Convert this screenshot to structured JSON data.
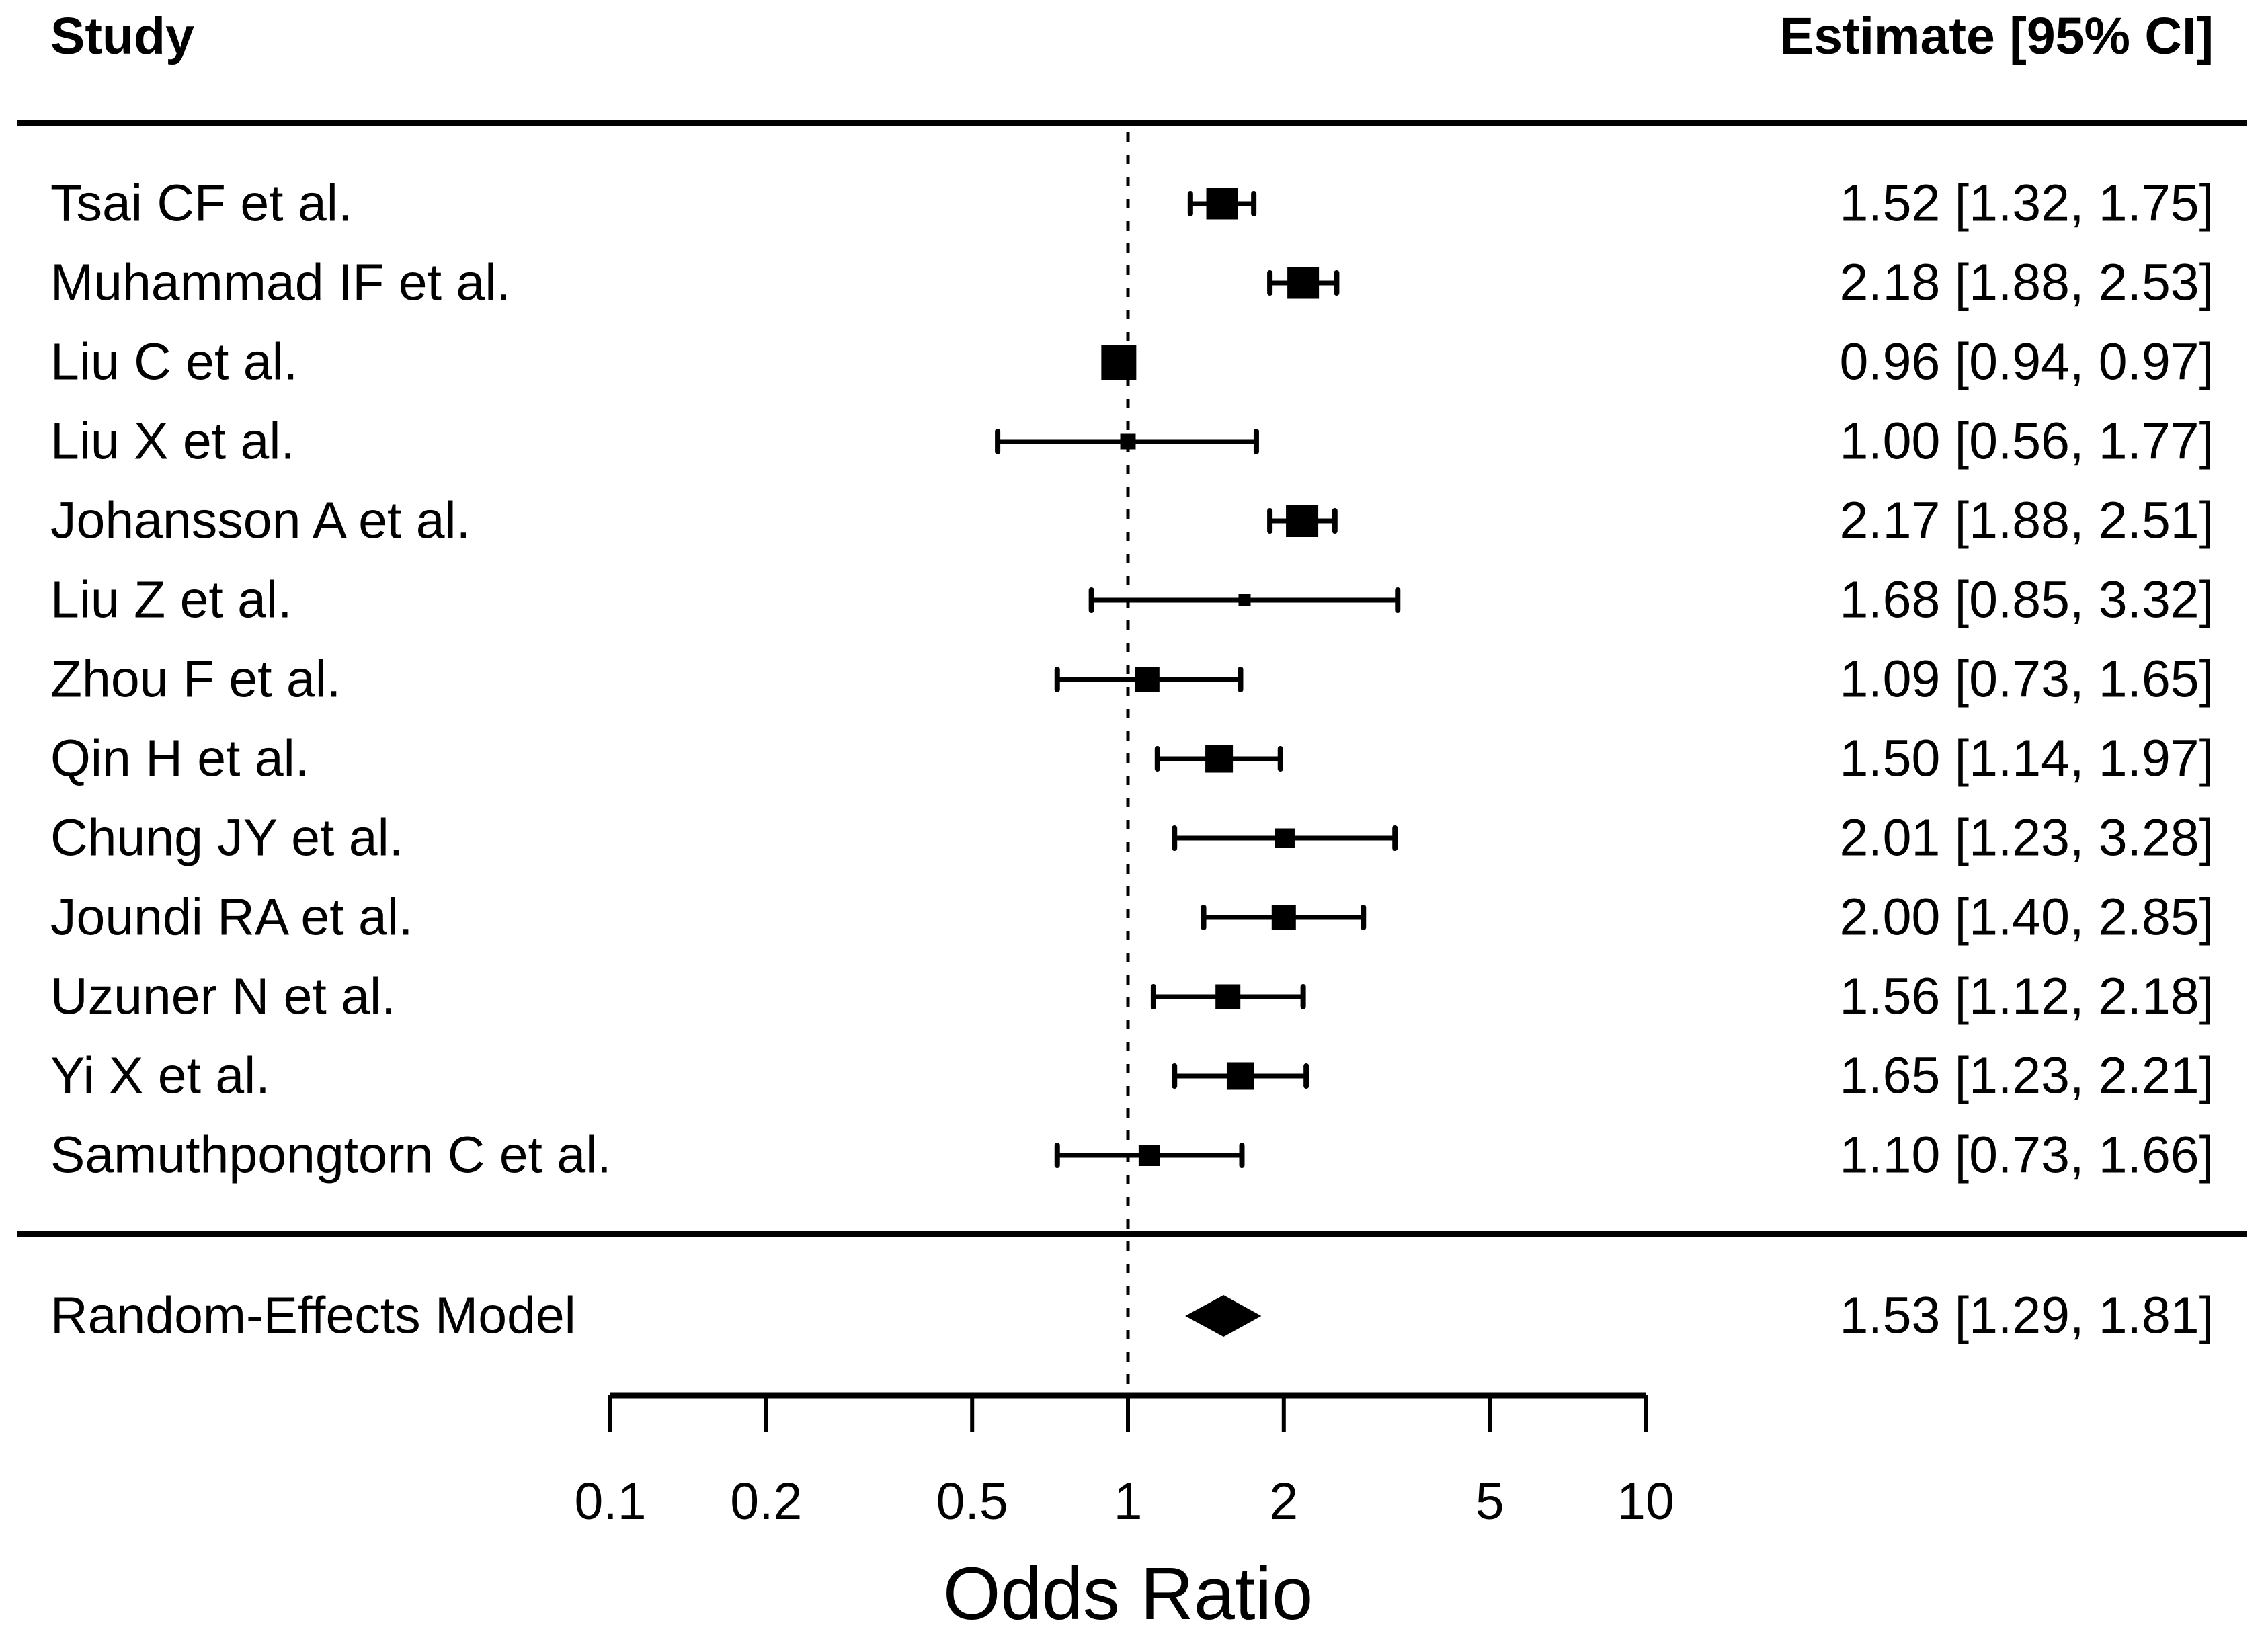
{
  "page": {
    "background": "#ffffff",
    "ink": "#000000"
  },
  "header": {
    "study": "Study",
    "estimate": "Estimate [95% CI]"
  },
  "chart_data": {
    "type": "forest",
    "x_scale": "log10",
    "xlabel": "Odds Ratio",
    "xlim": [
      0.1,
      10
    ],
    "ref_line": 1,
    "grid": "off",
    "x_ticks": [
      {
        "value": 0.1,
        "label": "0.1"
      },
      {
        "value": 0.2,
        "label": "0.2"
      },
      {
        "value": 0.5,
        "label": "0.5"
      },
      {
        "value": 1,
        "label": "1"
      },
      {
        "value": 2,
        "label": "2"
      },
      {
        "value": 5,
        "label": "5"
      },
      {
        "value": 10,
        "label": "10"
      }
    ],
    "studies": [
      {
        "label": "Tsai CF et al.",
        "estimate": 1.52,
        "ci_low": 1.32,
        "ci_high": 1.75,
        "estimate_label": "1.52 [1.32, 1.75]",
        "marker_size": 47
      },
      {
        "label": "Muhammad IF et al.",
        "estimate": 2.18,
        "ci_low": 1.88,
        "ci_high": 2.53,
        "estimate_label": "2.18 [1.88, 2.53]",
        "marker_size": 47
      },
      {
        "label": "Liu C et al.",
        "estimate": 0.96,
        "ci_low": 0.94,
        "ci_high": 0.97,
        "estimate_label": "0.96 [0.94, 0.97]",
        "marker_size": 52
      },
      {
        "label": "Liu X et al.",
        "estimate": 1.0,
        "ci_low": 0.56,
        "ci_high": 1.77,
        "estimate_label": "1.00 [0.56, 1.77]",
        "marker_size": 23
      },
      {
        "label": "Johansson A et al.",
        "estimate": 2.17,
        "ci_low": 1.88,
        "ci_high": 2.51,
        "estimate_label": "2.17 [1.88, 2.51]",
        "marker_size": 48
      },
      {
        "label": "Liu Z et al.",
        "estimate": 1.68,
        "ci_low": 0.85,
        "ci_high": 3.32,
        "estimate_label": "1.68 [0.85, 3.32]",
        "marker_size": 18
      },
      {
        "label": "Zhou F et al.",
        "estimate": 1.09,
        "ci_low": 0.73,
        "ci_high": 1.65,
        "estimate_label": "1.09 [0.73, 1.65]",
        "marker_size": 36
      },
      {
        "label": "Qin H et al.",
        "estimate": 1.5,
        "ci_low": 1.14,
        "ci_high": 1.97,
        "estimate_label": "1.50 [1.14, 1.97]",
        "marker_size": 41
      },
      {
        "label": "Chung JY et al.",
        "estimate": 2.01,
        "ci_low": 1.23,
        "ci_high": 3.28,
        "estimate_label": "2.01 [1.23, 3.28]",
        "marker_size": 29
      },
      {
        "label": "Joundi RA et al.",
        "estimate": 2.0,
        "ci_low": 1.4,
        "ci_high": 2.85,
        "estimate_label": "2.00 [1.40, 2.85]",
        "marker_size": 36
      },
      {
        "label": "Uzuner N et al.",
        "estimate": 1.56,
        "ci_low": 1.12,
        "ci_high": 2.18,
        "estimate_label": "1.56 [1.12, 2.18]",
        "marker_size": 37
      },
      {
        "label": "Yi X et al.",
        "estimate": 1.65,
        "ci_low": 1.23,
        "ci_high": 2.21,
        "estimate_label": "1.65 [1.23, 2.21]",
        "marker_size": 41
      },
      {
        "label": "Samuthpongtorn C et al.",
        "estimate": 1.1,
        "ci_low": 0.73,
        "ci_high": 1.66,
        "estimate_label": "1.10 [0.73, 1.66]",
        "marker_size": 32
      }
    ],
    "summary": {
      "label": "Random-Effects Model",
      "estimate": 1.53,
      "ci_low": 1.29,
      "ci_high": 1.81,
      "estimate_label": "1.53 [1.29, 1.81]"
    }
  }
}
